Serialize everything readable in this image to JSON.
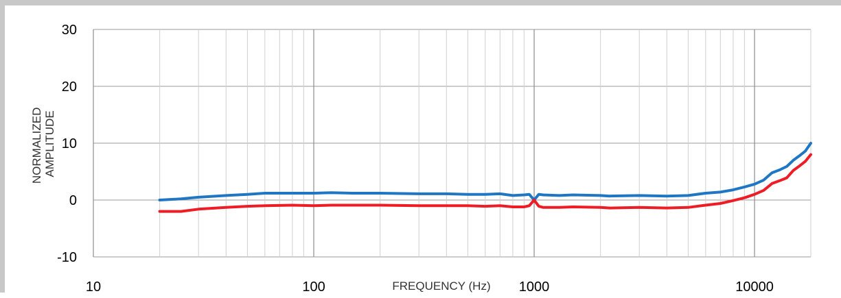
{
  "chart_data": {
    "type": "line",
    "title": "",
    "xlabel": "FREQUENCY (Hz)",
    "ylabel_lines": [
      "NORMALIZED",
      "AMPLITUDE"
    ],
    "xscale": "log",
    "xlim": [
      10,
      18000
    ],
    "ylim": [
      -10,
      30
    ],
    "x_ticks": [
      10,
      100,
      1000,
      10000
    ],
    "y_ticks": [
      -10,
      0,
      10,
      20,
      30
    ],
    "grid": true,
    "legend": "none",
    "series": [
      {
        "color": "#1f77c4",
        "points": [
          [
            20,
            0.0
          ],
          [
            25,
            0.2
          ],
          [
            30,
            0.5
          ],
          [
            40,
            0.8
          ],
          [
            50,
            1.0
          ],
          [
            60,
            1.2
          ],
          [
            80,
            1.2
          ],
          [
            100,
            1.2
          ],
          [
            120,
            1.3
          ],
          [
            150,
            1.2
          ],
          [
            200,
            1.2
          ],
          [
            300,
            1.1
          ],
          [
            400,
            1.1
          ],
          [
            500,
            1.0
          ],
          [
            600,
            1.0
          ],
          [
            700,
            1.1
          ],
          [
            800,
            0.8
          ],
          [
            900,
            0.9
          ],
          [
            950,
            1.0
          ],
          [
            1000,
            0.0
          ],
          [
            1050,
            1.0
          ],
          [
            1100,
            0.9
          ],
          [
            1300,
            0.8
          ],
          [
            1500,
            0.9
          ],
          [
            2000,
            0.8
          ],
          [
            2200,
            0.7
          ],
          [
            3000,
            0.8
          ],
          [
            4000,
            0.7
          ],
          [
            5000,
            0.8
          ],
          [
            6000,
            1.2
          ],
          [
            7000,
            1.4
          ],
          [
            8000,
            1.8
          ],
          [
            9000,
            2.3
          ],
          [
            10000,
            2.8
          ],
          [
            11000,
            3.5
          ],
          [
            12000,
            4.8
          ],
          [
            13000,
            5.3
          ],
          [
            14000,
            5.9
          ],
          [
            15000,
            7.0
          ],
          [
            16000,
            7.8
          ],
          [
            17000,
            8.6
          ],
          [
            18000,
            10.0
          ]
        ]
      },
      {
        "color": "#ee1c25",
        "points": [
          [
            20,
            -2.0
          ],
          [
            25,
            -2.0
          ],
          [
            30,
            -1.6
          ],
          [
            40,
            -1.3
          ],
          [
            50,
            -1.1
          ],
          [
            60,
            -1.0
          ],
          [
            80,
            -0.9
          ],
          [
            100,
            -1.0
          ],
          [
            120,
            -0.9
          ],
          [
            150,
            -0.9
          ],
          [
            200,
            -0.9
          ],
          [
            300,
            -1.0
          ],
          [
            400,
            -1.0
          ],
          [
            500,
            -1.0
          ],
          [
            600,
            -1.1
          ],
          [
            700,
            -1.0
          ],
          [
            800,
            -1.2
          ],
          [
            900,
            -1.2
          ],
          [
            950,
            -1.0
          ],
          [
            1000,
            0.0
          ],
          [
            1050,
            -1.1
          ],
          [
            1100,
            -1.3
          ],
          [
            1300,
            -1.3
          ],
          [
            1500,
            -1.2
          ],
          [
            2000,
            -1.3
          ],
          [
            2200,
            -1.4
          ],
          [
            3000,
            -1.3
          ],
          [
            4000,
            -1.4
          ],
          [
            5000,
            -1.3
          ],
          [
            6000,
            -0.9
          ],
          [
            7000,
            -0.6
          ],
          [
            8000,
            -0.1
          ],
          [
            9000,
            0.4
          ],
          [
            10000,
            1.0
          ],
          [
            11000,
            1.7
          ],
          [
            12000,
            2.9
          ],
          [
            13000,
            3.4
          ],
          [
            14000,
            3.9
          ],
          [
            15000,
            5.2
          ],
          [
            16000,
            6.0
          ],
          [
            17000,
            6.8
          ],
          [
            18000,
            8.0
          ]
        ]
      }
    ]
  }
}
